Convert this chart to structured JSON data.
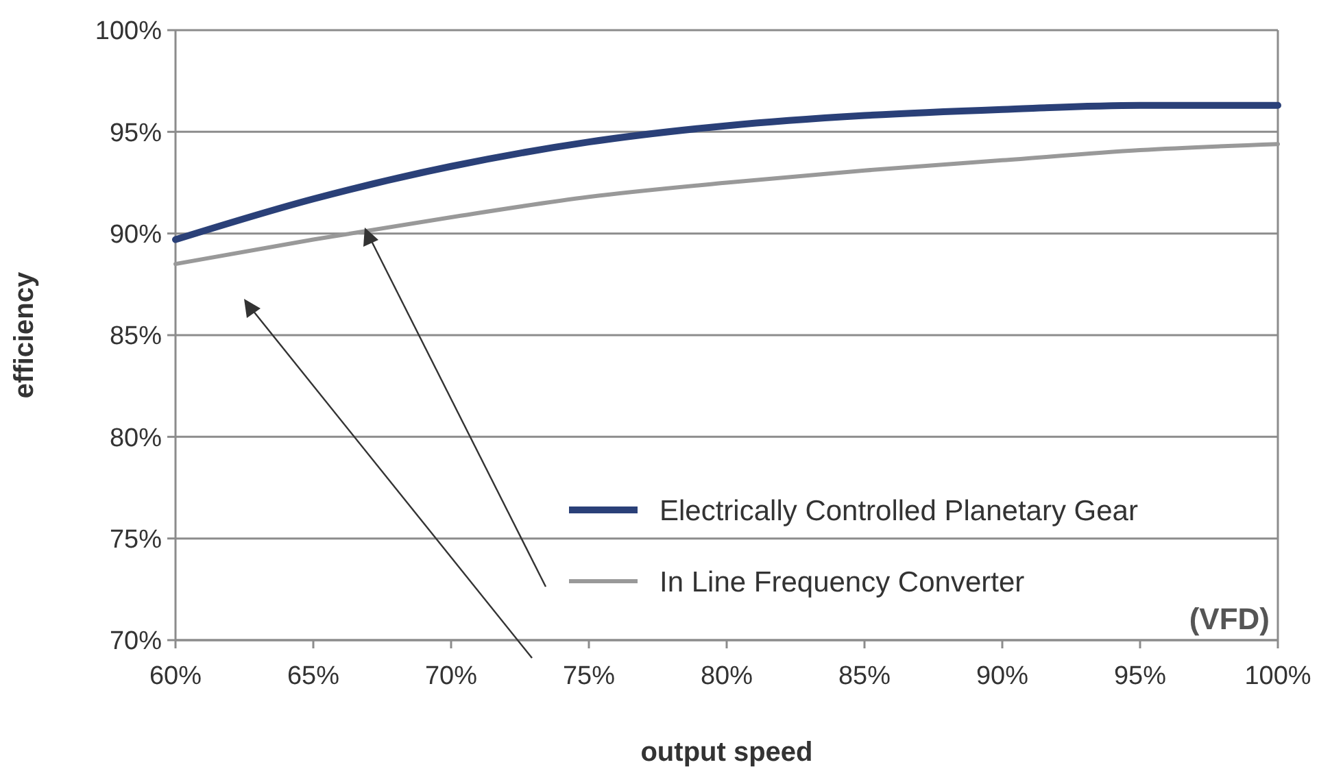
{
  "chart_data": {
    "type": "line",
    "xlabel": "output speed",
    "ylabel": "efficiency",
    "x": [
      60,
      65,
      70,
      75,
      80,
      85,
      90,
      95,
      100
    ],
    "series": [
      {
        "name": "Electrically Controlled Planetary Gear",
        "color": "#2a4078",
        "values": [
          89.7,
          91.7,
          93.3,
          94.5,
          95.3,
          95.8,
          96.1,
          96.3,
          96.3
        ]
      },
      {
        "name": "In Line Frequency Converter",
        "color": "#999999",
        "values": [
          88.5,
          89.7,
          90.8,
          91.8,
          92.5,
          93.1,
          93.6,
          94.1,
          94.4
        ]
      }
    ],
    "xlim": [
      60,
      100
    ],
    "xticks": [
      {
        "value": 60,
        "label": "60%"
      },
      {
        "value": 65,
        "label": "65%"
      },
      {
        "value": 70,
        "label": "70%"
      },
      {
        "value": 75,
        "label": "75%"
      },
      {
        "value": 80,
        "label": "80%"
      },
      {
        "value": 85,
        "label": "85%"
      },
      {
        "value": 90,
        "label": "90%"
      },
      {
        "value": 95,
        "label": "95%"
      },
      {
        "value": 100,
        "label": "100%"
      }
    ],
    "ylim": [
      70,
      100
    ],
    "yticks": [
      {
        "value": 70,
        "label": "70%"
      },
      {
        "value": 75,
        "label": "75%"
      },
      {
        "value": 80,
        "label": "80%"
      },
      {
        "value": 85,
        "label": "85%"
      },
      {
        "value": 90,
        "label": "90%"
      },
      {
        "value": 95,
        "label": "95%"
      },
      {
        "value": 100,
        "label": "100%"
      }
    ],
    "grid": "y",
    "legend": "bottom right",
    "marker": "none",
    "line_style": "solid",
    "annotations": [
      "(VFD)"
    ]
  }
}
